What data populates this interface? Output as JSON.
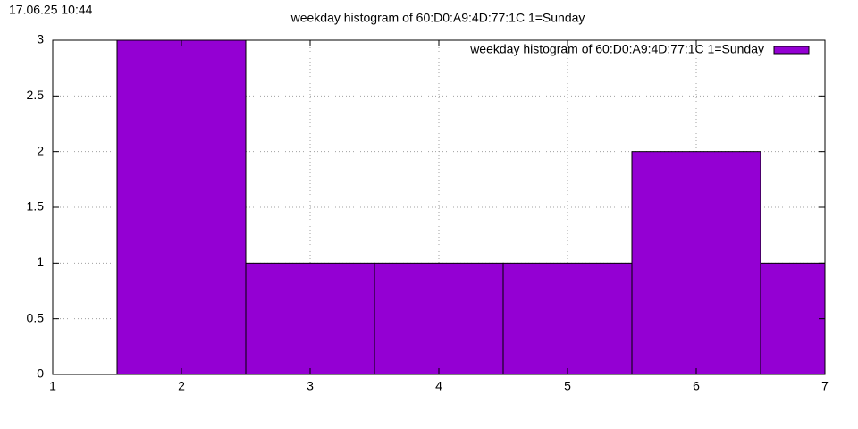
{
  "timestamp": "17.06.25 10:44",
  "chart_data": {
    "type": "bar",
    "title": "weekday histogram of 60:D0:A9:4D:77:1C 1=Sunday",
    "x": [
      2,
      3,
      4,
      5,
      6,
      7
    ],
    "series": [
      {
        "name": "weekday histogram of 60:D0:A9:4D:77:1C 1=Sunday",
        "color": "#9400d3",
        "values": [
          3,
          1,
          1,
          1,
          2,
          1
        ]
      }
    ],
    "xlim": [
      1,
      7
    ],
    "xticks": [
      1,
      2,
      3,
      4,
      5,
      6,
      7
    ],
    "ylim": [
      0,
      3
    ],
    "yticks": [
      0,
      0.5,
      1,
      1.5,
      2,
      2.5,
      3
    ],
    "grid": true,
    "legend": "top-right"
  }
}
